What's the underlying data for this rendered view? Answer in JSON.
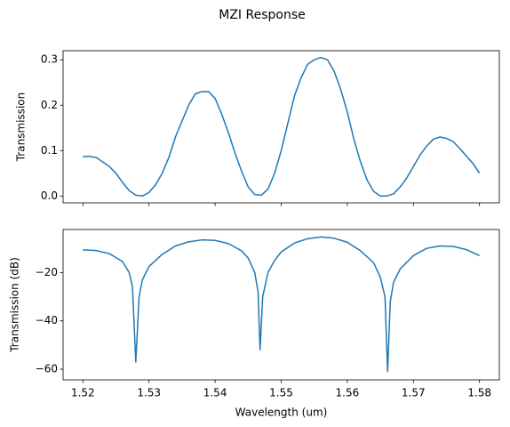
{
  "title": "MZI Response",
  "chart_data": [
    {
      "type": "line",
      "ylabel": "Transmission",
      "color": "#1f77b4",
      "x": [
        1.52,
        1.521,
        1.522,
        1.523,
        1.524,
        1.525,
        1.526,
        1.527,
        1.528,
        1.529,
        1.53,
        1.531,
        1.532,
        1.533,
        1.534,
        1.535,
        1.536,
        1.537,
        1.538,
        1.539,
        1.54,
        1.541,
        1.542,
        1.543,
        1.544,
        1.545,
        1.546,
        1.547,
        1.548,
        1.549,
        1.55,
        1.551,
        1.552,
        1.553,
        1.554,
        1.555,
        1.556,
        1.557,
        1.558,
        1.559,
        1.56,
        1.561,
        1.562,
        1.563,
        1.564,
        1.565,
        1.566,
        1.567,
        1.568,
        1.569,
        1.57,
        1.571,
        1.572,
        1.573,
        1.574,
        1.575,
        1.576,
        1.577,
        1.578,
        1.579,
        1.58
      ],
      "values": [
        0.087,
        0.087,
        0.085,
        0.075,
        0.065,
        0.05,
        0.03,
        0.012,
        0.002,
        0.0,
        0.008,
        0.025,
        0.05,
        0.085,
        0.13,
        0.165,
        0.2,
        0.225,
        0.23,
        0.23,
        0.215,
        0.18,
        0.14,
        0.095,
        0.055,
        0.02,
        0.003,
        0.002,
        0.015,
        0.05,
        0.1,
        0.16,
        0.22,
        0.26,
        0.29,
        0.3,
        0.305,
        0.3,
        0.275,
        0.235,
        0.185,
        0.125,
        0.075,
        0.035,
        0.01,
        0.0,
        0.0,
        0.005,
        0.02,
        0.04,
        0.065,
        0.09,
        0.11,
        0.125,
        0.13,
        0.127,
        0.12,
        0.105,
        0.088,
        0.072,
        0.05
      ],
      "xlim": [
        1.517,
        1.583
      ],
      "ylim": [
        -0.015,
        0.32
      ],
      "yticks": [
        {
          "value": 0.0,
          "label": "0.0"
        },
        0.1,
        0.2,
        0.3
      ]
    },
    {
      "type": "line",
      "ylabel": "Transmission (dB)",
      "xlabel": "Wavelength (um)",
      "color": "#1f77b4",
      "x": [
        1.52,
        1.522,
        1.524,
        1.526,
        1.527,
        1.5275,
        1.528,
        1.5285,
        1.529,
        1.53,
        1.532,
        1.534,
        1.536,
        1.538,
        1.54,
        1.542,
        1.544,
        1.545,
        1.546,
        1.5465,
        1.5468,
        1.5472,
        1.548,
        1.549,
        1.55,
        1.552,
        1.554,
        1.556,
        1.558,
        1.56,
        1.562,
        1.564,
        1.565,
        1.5657,
        1.5661,
        1.5665,
        1.567,
        1.568,
        1.57,
        1.572,
        1.574,
        1.576,
        1.578,
        1.58
      ],
      "values": [
        -10.6,
        -10.9,
        -12.2,
        -15.5,
        -20,
        -26,
        -57,
        -30,
        -23,
        -17.5,
        -12.5,
        -9,
        -7.3,
        -6.5,
        -6.7,
        -8,
        -11,
        -14,
        -20,
        -28,
        -52,
        -30,
        -20,
        -15,
        -11.5,
        -7.8,
        -6,
        -5.3,
        -5.8,
        -7.5,
        -11,
        -16,
        -22,
        -30,
        -61,
        -32,
        -24,
        -18.5,
        -13,
        -10,
        -9,
        -9.2,
        -10.5,
        -13
      ],
      "xlim": [
        1.517,
        1.583
      ],
      "ylim": [
        -64.4,
        -2.2
      ],
      "xticks": [
        1.52,
        1.53,
        1.54,
        1.55,
        1.56,
        1.57,
        1.58
      ],
      "yticks": [
        {
          "value": -60,
          "label": "−60"
        },
        {
          "value": -40,
          "label": "−40"
        },
        {
          "value": -20,
          "label": "−20"
        }
      ]
    }
  ]
}
